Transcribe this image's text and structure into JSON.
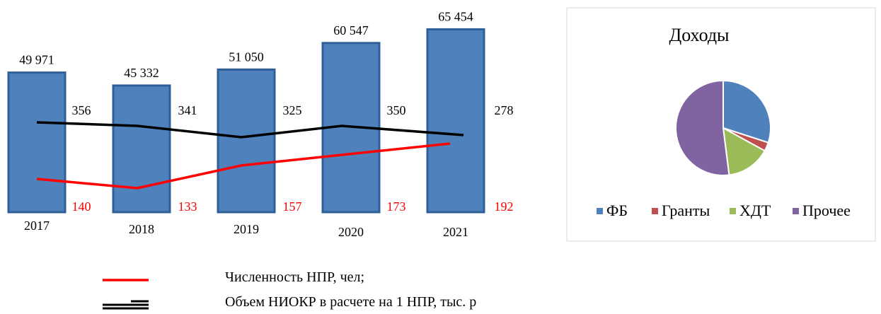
{
  "chart_data": [
    {
      "type": "bar",
      "categories": [
        "2017",
        "2018",
        "2019",
        "2020",
        "2021"
      ],
      "series": [
        {
          "values": [
            49971,
            45332,
            51050,
            60547,
            65454
          ],
          "labels": [
            "49 971",
            "45 332",
            "51 050",
            "60 547",
            "65 454"
          ],
          "color": "#4F81BD"
        },
        {
          "name": "Численность НПР, чел;",
          "type": "line",
          "values": [
            140,
            133,
            157,
            173,
            192
          ],
          "color": "#FF0000"
        },
        {
          "name": "Объем НИОКР в расчете на 1 НПР, тыс. р",
          "type": "line",
          "values": [
            356,
            341,
            325,
            350,
            278
          ],
          "color": "#000000"
        }
      ],
      "legend": [
        {
          "label": "Численность НПР, чел;",
          "color": "#FF0000"
        },
        {
          "label": "Объем НИОКР в расчете на 1 НПР, тыс. р",
          "color": "#000000"
        }
      ],
      "legend_position": "bottom"
    },
    {
      "type": "pie",
      "title": "Доходы",
      "labels": [
        "ФБ",
        "Гранты",
        "ХДТ",
        "Прочее"
      ],
      "values": [
        30,
        3,
        15,
        52
      ],
      "colors": [
        "#4F81BD",
        "#C0504D",
        "#9BBB59",
        "#8064A2"
      ],
      "legend_position": "bottom"
    }
  ]
}
